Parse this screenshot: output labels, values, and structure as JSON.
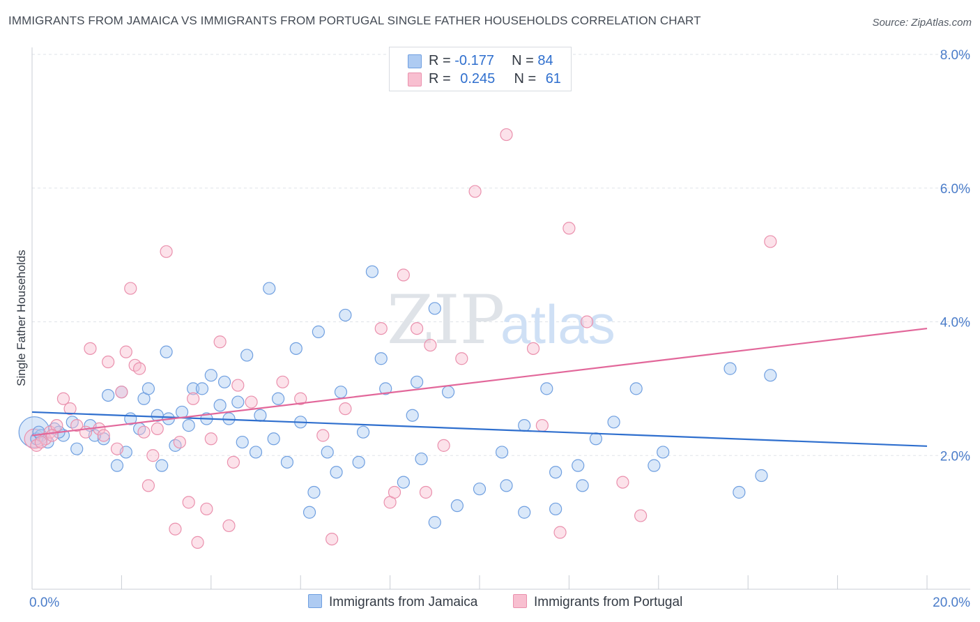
{
  "header": {
    "title": "IMMIGRANTS FROM JAMAICA VS IMMIGRANTS FROM PORTUGAL SINGLE FATHER HOUSEHOLDS CORRELATION CHART",
    "source": "Source: ZipAtlas.com"
  },
  "legend": {
    "jamaica": {
      "r_label": "R =",
      "r_value": "-0.177",
      "n_label": "N =",
      "n_value": "84"
    },
    "portugal": {
      "r_label": "R =",
      "r_value": "0.245",
      "n_label": "N =",
      "n_value": "61"
    }
  },
  "watermark": {
    "zip": "ZIP",
    "atlas": "atlas"
  },
  "colors": {
    "jamaica_fill": "#aecbf2",
    "jamaica_stroke": "#6f9fe0",
    "jamaica_line": "#2f6fce",
    "portugal_fill": "#f8bfd0",
    "portugal_stroke": "#ea90ad",
    "portugal_line": "#e2679a",
    "tick_text": "#4a7cc9",
    "grid": "#dfe3e8"
  },
  "chart_data": {
    "type": "scatter",
    "title": "IMMIGRANTS FROM JAMAICA VS IMMIGRANTS FROM PORTUGAL SINGLE FATHER HOUSEHOLDS CORRELATION CHART",
    "xlabel": "",
    "ylabel": "Single Father Households",
    "xlim": [
      0,
      20
    ],
    "ylim": [
      0,
      8
    ],
    "x_tick_labels": [
      "0.0%",
      "20.0%"
    ],
    "y_ticks": [
      2,
      4,
      6,
      8
    ],
    "y_tick_labels": [
      "2.0%",
      "4.0%",
      "6.0%",
      "8.0%"
    ],
    "grid": "horizontal dashed",
    "legend_position": "bottom-center",
    "series": [
      {
        "name": "Immigrants from Jamaica",
        "color": "#aecbf2",
        "trend": {
          "x": [
            0,
            20
          ],
          "y": [
            2.65,
            2.14
          ]
        },
        "points": [
          [
            0.1,
            2.25
          ],
          [
            0.2,
            2.3
          ],
          [
            0.35,
            2.2
          ],
          [
            0.5,
            2.4
          ],
          [
            0.7,
            2.3
          ],
          [
            0.9,
            2.5
          ],
          [
            1.0,
            2.1
          ],
          [
            1.3,
            2.45
          ],
          [
            1.6,
            2.25
          ],
          [
            1.7,
            2.9
          ],
          [
            1.9,
            1.85
          ],
          [
            2.0,
            2.95
          ],
          [
            2.1,
            2.05
          ],
          [
            2.2,
            2.55
          ],
          [
            2.4,
            2.4
          ],
          [
            2.5,
            2.85
          ],
          [
            2.6,
            3.0
          ],
          [
            2.8,
            2.6
          ],
          [
            2.9,
            1.85
          ],
          [
            3.0,
            3.55
          ],
          [
            3.2,
            2.15
          ],
          [
            3.35,
            2.65
          ],
          [
            3.5,
            2.45
          ],
          [
            3.6,
            3.0
          ],
          [
            3.8,
            3.0
          ],
          [
            3.9,
            2.55
          ],
          [
            4.0,
            3.2
          ],
          [
            4.2,
            2.75
          ],
          [
            4.3,
            3.1
          ],
          [
            4.4,
            2.55
          ],
          [
            4.6,
            2.8
          ],
          [
            4.7,
            2.2
          ],
          [
            4.8,
            3.5
          ],
          [
            5.0,
            2.05
          ],
          [
            5.1,
            2.6
          ],
          [
            5.3,
            4.5
          ],
          [
            5.4,
            2.25
          ],
          [
            5.5,
            2.85
          ],
          [
            5.7,
            1.9
          ],
          [
            5.9,
            3.6
          ],
          [
            6.0,
            2.5
          ],
          [
            6.2,
            1.15
          ],
          [
            6.3,
            1.45
          ],
          [
            6.4,
            3.85
          ],
          [
            6.6,
            2.05
          ],
          [
            6.8,
            1.75
          ],
          [
            6.9,
            2.95
          ],
          [
            7.0,
            4.1
          ],
          [
            7.3,
            1.9
          ],
          [
            7.4,
            2.35
          ],
          [
            7.6,
            4.75
          ],
          [
            7.8,
            3.45
          ],
          [
            7.9,
            3.0
          ],
          [
            8.3,
            1.6
          ],
          [
            8.5,
            2.6
          ],
          [
            8.6,
            3.1
          ],
          [
            8.7,
            1.95
          ],
          [
            9.0,
            1.0
          ],
          [
            9.0,
            4.2
          ],
          [
            9.3,
            2.95
          ],
          [
            9.5,
            1.25
          ],
          [
            10.0,
            1.5
          ],
          [
            10.5,
            2.05
          ],
          [
            10.6,
            1.55
          ],
          [
            11.0,
            1.15
          ],
          [
            11.0,
            2.45
          ],
          [
            11.5,
            3.0
          ],
          [
            11.7,
            1.2
          ],
          [
            11.7,
            1.75
          ],
          [
            12.2,
            1.85
          ],
          [
            12.3,
            1.55
          ],
          [
            12.6,
            2.25
          ],
          [
            13.0,
            2.5
          ],
          [
            13.5,
            3.0
          ],
          [
            13.9,
            1.85
          ],
          [
            14.1,
            2.05
          ],
          [
            15.6,
            3.3
          ],
          [
            15.8,
            1.45
          ],
          [
            16.3,
            1.7
          ],
          [
            16.5,
            3.2
          ],
          [
            0.15,
            2.35
          ],
          [
            0.6,
            2.35
          ],
          [
            1.4,
            2.3
          ],
          [
            3.05,
            2.55
          ]
        ]
      },
      {
        "name": "Immigrants from Portugal",
        "color": "#f8bfd0",
        "trend": {
          "x": [
            0,
            20
          ],
          "y": [
            2.3,
            3.9
          ]
        },
        "points": [
          [
            0.1,
            2.15
          ],
          [
            0.3,
            2.25
          ],
          [
            0.4,
            2.35
          ],
          [
            0.55,
            2.45
          ],
          [
            0.7,
            2.85
          ],
          [
            0.85,
            2.7
          ],
          [
            1.0,
            2.45
          ],
          [
            1.3,
            3.6
          ],
          [
            1.5,
            2.4
          ],
          [
            1.6,
            2.3
          ],
          [
            1.7,
            3.4
          ],
          [
            1.9,
            2.1
          ],
          [
            2.0,
            2.95
          ],
          [
            2.1,
            3.55
          ],
          [
            2.2,
            4.5
          ],
          [
            2.3,
            3.35
          ],
          [
            2.4,
            3.3
          ],
          [
            2.5,
            2.35
          ],
          [
            2.6,
            1.55
          ],
          [
            2.7,
            2.0
          ],
          [
            2.8,
            2.4
          ],
          [
            3.0,
            5.05
          ],
          [
            3.2,
            0.9
          ],
          [
            3.3,
            2.2
          ],
          [
            3.5,
            1.3
          ],
          [
            3.6,
            2.85
          ],
          [
            3.7,
            0.7
          ],
          [
            3.9,
            1.2
          ],
          [
            4.0,
            2.25
          ],
          [
            4.2,
            3.7
          ],
          [
            4.4,
            0.95
          ],
          [
            4.5,
            1.9
          ],
          [
            4.6,
            3.05
          ],
          [
            4.9,
            2.8
          ],
          [
            5.6,
            3.1
          ],
          [
            6.0,
            2.85
          ],
          [
            6.5,
            2.3
          ],
          [
            6.7,
            0.75
          ],
          [
            7.0,
            2.7
          ],
          [
            7.8,
            3.9
          ],
          [
            8.0,
            1.3
          ],
          [
            8.1,
            1.45
          ],
          [
            8.3,
            4.7
          ],
          [
            8.6,
            3.9
          ],
          [
            8.8,
            1.45
          ],
          [
            8.9,
            3.65
          ],
          [
            9.2,
            2.15
          ],
          [
            9.6,
            3.45
          ],
          [
            9.9,
            5.95
          ],
          [
            10.6,
            6.8
          ],
          [
            11.2,
            3.6
          ],
          [
            11.4,
            2.45
          ],
          [
            11.8,
            0.85
          ],
          [
            12.0,
            5.4
          ],
          [
            12.4,
            4.0
          ],
          [
            13.2,
            1.6
          ],
          [
            13.6,
            1.1
          ],
          [
            16.5,
            5.2
          ],
          [
            0.2,
            2.2
          ],
          [
            0.45,
            2.3
          ],
          [
            1.2,
            2.35
          ]
        ]
      }
    ]
  },
  "bottom_legend": {
    "jamaica_label": "Immigrants from Jamaica",
    "portugal_label": "Immigrants from Portugal"
  }
}
